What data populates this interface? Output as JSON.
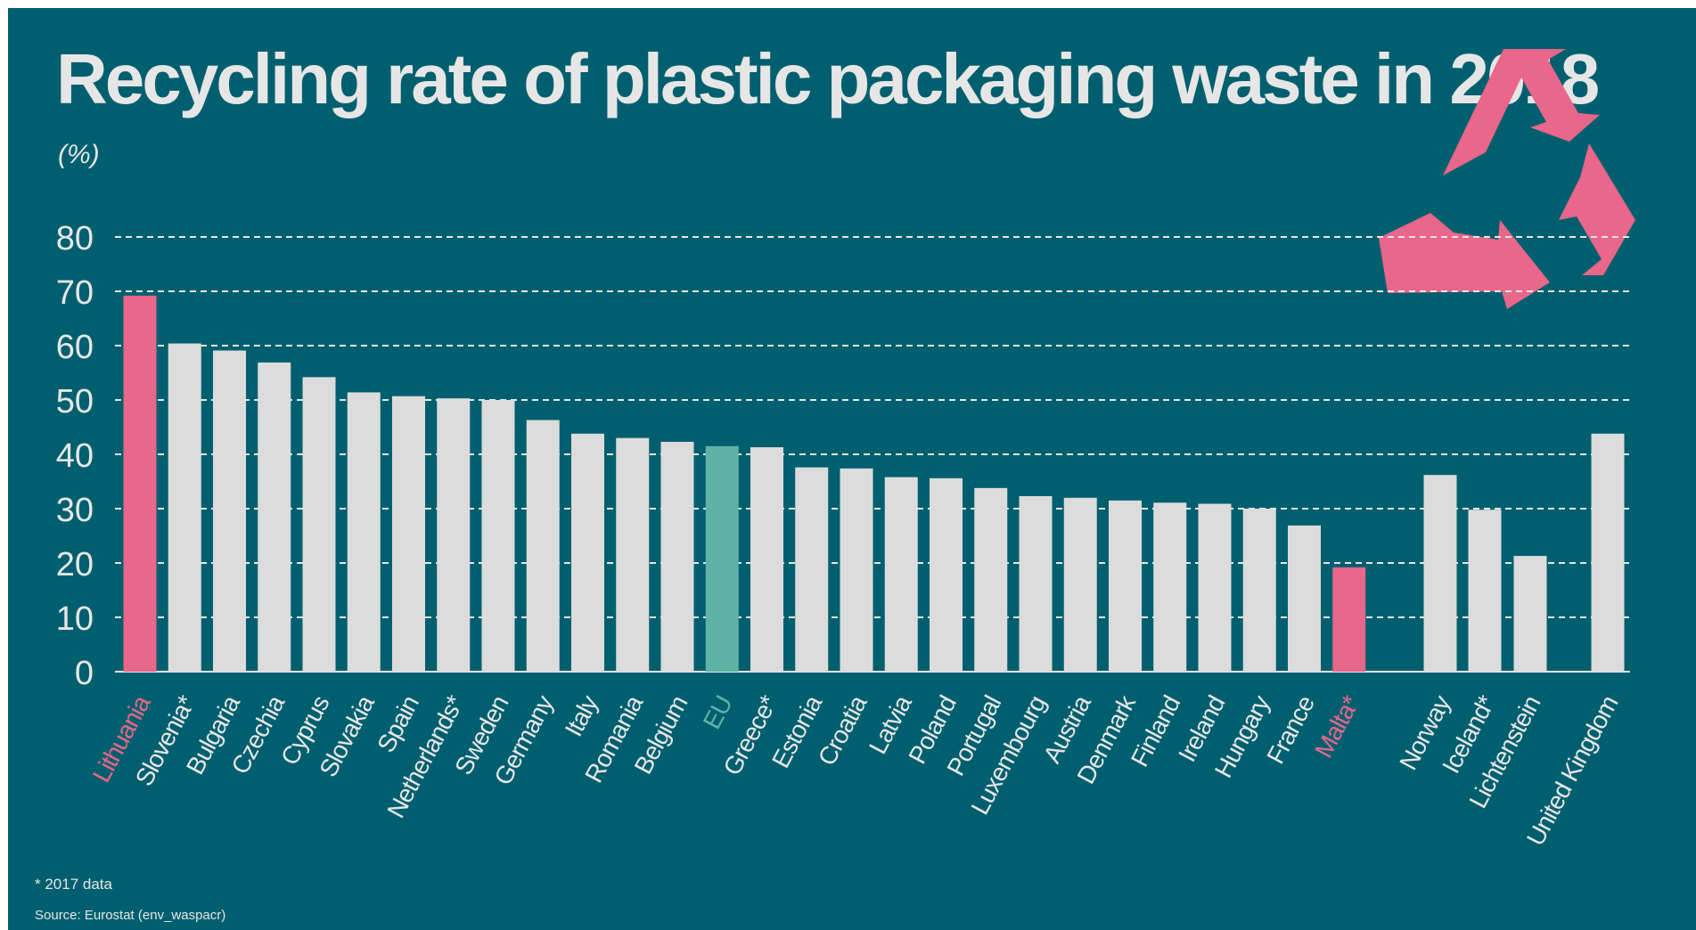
{
  "header": {
    "title": "Recycling rate of plastic packaging waste in 2018",
    "unit": "(%)"
  },
  "footer": {
    "footnote": "* 2017 data",
    "source": "Source: Eurostat (env_waspacr)"
  },
  "logo": {
    "icon": "recycle-icon",
    "color": "#e8678a"
  },
  "colors": {
    "background": "#005f6e",
    "bar": "#dcdcdc",
    "highlight": "#e8678a",
    "eu": "#5fb3a6",
    "text": "#e6e6e6"
  },
  "chart_data": {
    "type": "bar",
    "title": "Recycling rate of plastic packaging waste in 2018",
    "ylabel": "(%)",
    "ylim": [
      0,
      80
    ],
    "yticks": [
      0,
      10,
      20,
      30,
      40,
      50,
      60,
      70,
      80
    ],
    "grid": true,
    "categories": [
      "Lithuania",
      "Slovenia*",
      "Bulgaria",
      "Czechia",
      "Cyprus",
      "Slovakia",
      "Spain",
      "Netherlands*",
      "Sweden",
      "Germany",
      "Italy",
      "Romania",
      "Belgium",
      "EU",
      "Greece*",
      "Estonia",
      "Croatia",
      "Latvia",
      "Poland",
      "Portugal",
      "Luxembourg",
      "Austria",
      "Denmark",
      "Finland",
      "Ireland",
      "Hungary",
      "France",
      "Malta*",
      "Norway",
      "Iceland*",
      "Lichtenstein",
      "United Kingdom"
    ],
    "values": [
      69.2,
      60.4,
      59.1,
      56.9,
      54.2,
      51.4,
      50.7,
      50.3,
      50.0,
      46.3,
      43.8,
      43.0,
      42.3,
      41.5,
      41.3,
      37.6,
      37.4,
      35.8,
      35.6,
      33.8,
      32.3,
      32.0,
      31.5,
      31.1,
      30.9,
      30.0,
      26.9,
      19.2,
      36.2,
      29.8,
      21.3,
      43.8
    ],
    "highlight": [
      "highlight",
      "bar",
      "bar",
      "bar",
      "bar",
      "bar",
      "bar",
      "bar",
      "bar",
      "bar",
      "bar",
      "bar",
      "bar",
      "eu",
      "bar",
      "bar",
      "bar",
      "bar",
      "bar",
      "bar",
      "bar",
      "bar",
      "bar",
      "bar",
      "bar",
      "bar",
      "bar",
      "highlight",
      "bar",
      "bar",
      "bar",
      "bar"
    ]
  }
}
